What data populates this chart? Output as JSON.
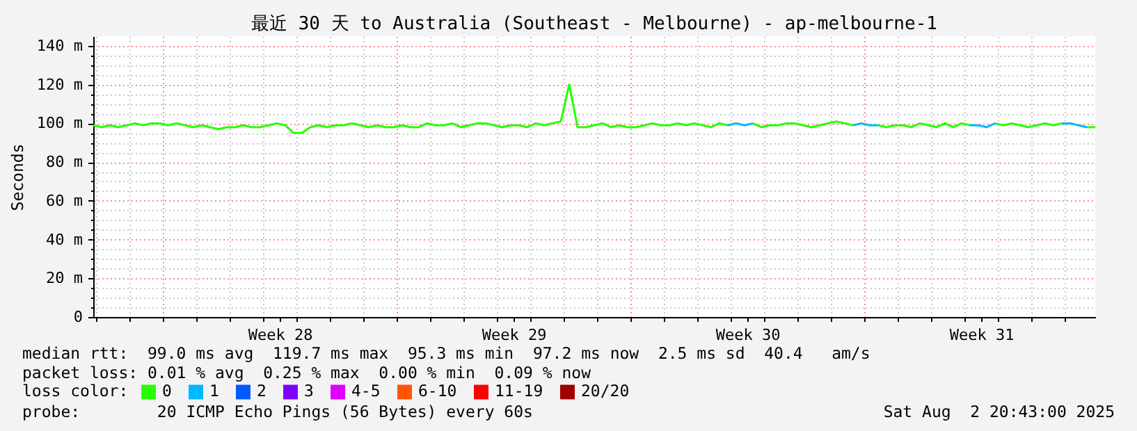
{
  "chart_data": {
    "type": "line",
    "title": "最近 30 天 to Australia (Southeast - Melbourne) - ap-melbourne-1",
    "ylabel": "Seconds",
    "legend_title": "loss color:",
    "legend": "bottom",
    "grid": true,
    "xlim": [
      "2025-07-04T22:00",
      "2025-08-03T22:00"
    ],
    "xticks": [
      {
        "value": "2025-07-05T00:00",
        "label": null
      },
      {
        "value": "2025-07-06T00:00",
        "label": null
      },
      {
        "value": "2025-07-07T00:00",
        "label": null
      },
      {
        "value": "2025-07-08T00:00",
        "label": null
      },
      {
        "value": "2025-07-09T00:00",
        "label": null
      },
      {
        "value": "2025-07-10T00:00",
        "label": null
      },
      {
        "value": "2025-07-10T12:00",
        "label": "Week 28"
      },
      {
        "value": "2025-07-11T00:00",
        "label": null
      },
      {
        "value": "2025-07-12T00:00",
        "label": null
      },
      {
        "value": "2025-07-13T00:00",
        "label": null
      },
      {
        "value": "2025-07-14T00:00",
        "label": null
      },
      {
        "value": "2025-07-15T00:00",
        "label": null
      },
      {
        "value": "2025-07-16T00:00",
        "label": null
      },
      {
        "value": "2025-07-17T00:00",
        "label": null
      },
      {
        "value": "2025-07-17T12:00",
        "label": "Week 29"
      },
      {
        "value": "2025-07-18T00:00",
        "label": null
      },
      {
        "value": "2025-07-19T00:00",
        "label": null
      },
      {
        "value": "2025-07-20T00:00",
        "label": null
      },
      {
        "value": "2025-07-21T00:00",
        "label": null
      },
      {
        "value": "2025-07-22T00:00",
        "label": null
      },
      {
        "value": "2025-07-23T00:00",
        "label": null
      },
      {
        "value": "2025-07-24T00:00",
        "label": null
      },
      {
        "value": "2025-07-24T12:00",
        "label": "Week 30"
      },
      {
        "value": "2025-07-25T00:00",
        "label": null
      },
      {
        "value": "2025-07-26T00:00",
        "label": null
      },
      {
        "value": "2025-07-27T00:00",
        "label": null
      },
      {
        "value": "2025-07-28T00:00",
        "label": null
      },
      {
        "value": "2025-07-29T00:00",
        "label": null
      },
      {
        "value": "2025-07-30T00:00",
        "label": null
      },
      {
        "value": "2025-07-31T00:00",
        "label": null
      },
      {
        "value": "2025-07-31T12:00",
        "label": "Week 31"
      },
      {
        "value": "2025-08-01T00:00",
        "label": null
      },
      {
        "value": "2025-08-02T00:00",
        "label": null
      },
      {
        "value": "2025-08-03T00:00",
        "label": null
      }
    ],
    "ylim": [
      0,
      145
    ],
    "yticks": [
      0,
      {
        "value": 5,
        "label": null
      },
      {
        "value": 10,
        "label": null
      },
      {
        "value": 15,
        "label": null
      },
      {
        "value": 20,
        "label": "20 m"
      },
      {
        "value": 25,
        "label": null
      },
      {
        "value": 30,
        "label": null
      },
      {
        "value": 35,
        "label": null
      },
      {
        "value": 40,
        "label": "40 m"
      },
      {
        "value": 45,
        "label": null
      },
      {
        "value": 50,
        "label": null
      },
      {
        "value": 55,
        "label": null
      },
      {
        "value": 60,
        "label": "60 m"
      },
      {
        "value": 65,
        "label": null
      },
      {
        "value": 70,
        "label": null
      },
      {
        "value": 75,
        "label": null
      },
      {
        "value": 80,
        "label": "80 m"
      },
      {
        "value": 85,
        "label": null
      },
      {
        "value": 90,
        "label": null
      },
      {
        "value": 95,
        "label": null
      },
      {
        "value": 100,
        "label": "100 m"
      },
      {
        "value": 105,
        "label": null
      },
      {
        "value": 110,
        "label": null
      },
      {
        "value": 115,
        "label": null
      },
      {
        "value": 120,
        "label": "120 m"
      },
      {
        "value": 125,
        "label": null
      },
      {
        "value": 130,
        "label": null
      },
      {
        "value": 135,
        "label": null
      },
      {
        "value": 140,
        "label": "140 m"
      }
    ],
    "x": [
      "2025-07-04T22:00",
      "2025-07-05T04:00",
      "2025-07-05T10:00",
      "2025-07-05T16:00",
      "2025-07-05T22:00",
      "2025-07-06T04:00",
      "2025-07-06T10:00",
      "2025-07-06T16:00",
      "2025-07-06T22:00",
      "2025-07-07T04:00",
      "2025-07-07T10:00",
      "2025-07-07T16:00",
      "2025-07-07T22:00",
      "2025-07-08T04:00",
      "2025-07-08T10:00",
      "2025-07-08T16:00",
      "2025-07-08T22:00",
      "2025-07-09T04:00",
      "2025-07-09T10:00",
      "2025-07-09T16:00",
      "2025-07-09T22:00",
      "2025-07-10T04:00",
      "2025-07-10T10:00",
      "2025-07-10T16:00",
      "2025-07-10T22:00",
      "2025-07-11T04:00",
      "2025-07-11T10:00",
      "2025-07-11T16:00",
      "2025-07-11T22:00",
      "2025-07-12T04:00",
      "2025-07-12T10:00",
      "2025-07-12T16:00",
      "2025-07-12T22:00",
      "2025-07-13T04:00",
      "2025-07-13T10:00",
      "2025-07-13T16:00",
      "2025-07-13T22:00",
      "2025-07-14T04:00",
      "2025-07-14T10:00",
      "2025-07-14T16:00",
      "2025-07-14T22:00",
      "2025-07-15T04:00",
      "2025-07-15T10:00",
      "2025-07-15T16:00",
      "2025-07-15T22:00",
      "2025-07-16T04:00",
      "2025-07-16T10:00",
      "2025-07-16T16:00",
      "2025-07-16T22:00",
      "2025-07-17T04:00",
      "2025-07-17T10:00",
      "2025-07-17T16:00",
      "2025-07-17T22:00",
      "2025-07-18T04:00",
      "2025-07-18T10:00",
      "2025-07-18T16:00",
      "2025-07-18T22:00",
      "2025-07-19T04:00",
      "2025-07-19T10:00",
      "2025-07-19T16:00",
      "2025-07-19T22:00",
      "2025-07-20T04:00",
      "2025-07-20T10:00",
      "2025-07-20T16:00",
      "2025-07-20T22:00",
      "2025-07-21T04:00",
      "2025-07-21T10:00",
      "2025-07-21T16:00",
      "2025-07-21T22:00",
      "2025-07-22T04:00",
      "2025-07-22T10:00",
      "2025-07-22T16:00",
      "2025-07-22T22:00",
      "2025-07-23T04:00",
      "2025-07-23T10:00",
      "2025-07-23T16:00",
      "2025-07-23T22:00",
      "2025-07-24T04:00",
      "2025-07-24T10:00",
      "2025-07-24T16:00",
      "2025-07-24T22:00",
      "2025-07-25T04:00",
      "2025-07-25T10:00",
      "2025-07-25T16:00",
      "2025-07-25T22:00",
      "2025-07-26T04:00",
      "2025-07-26T10:00",
      "2025-07-26T16:00",
      "2025-07-26T22:00",
      "2025-07-27T04:00",
      "2025-07-27T10:00",
      "2025-07-27T16:00",
      "2025-07-27T22:00",
      "2025-07-28T04:00",
      "2025-07-28T10:00",
      "2025-07-28T16:00",
      "2025-07-28T22:00",
      "2025-07-29T04:00",
      "2025-07-29T10:00",
      "2025-07-29T16:00",
      "2025-07-29T22:00",
      "2025-07-30T04:00",
      "2025-07-30T10:00",
      "2025-07-30T16:00",
      "2025-07-30T22:00",
      "2025-07-31T04:00",
      "2025-07-31T10:00",
      "2025-07-31T16:00",
      "2025-07-31T22:00",
      "2025-08-01T04:00",
      "2025-08-01T10:00",
      "2025-08-01T16:00",
      "2025-08-01T22:00",
      "2025-08-02T04:00",
      "2025-08-02T10:00",
      "2025-08-02T16:00",
      "2025-08-02T22:00",
      "2025-08-03T04:00",
      "2025-08-03T10:00",
      "2025-08-03T16:00",
      "2025-08-03T22:00"
    ],
    "series": [
      {
        "name": "0",
        "color": "#26ff00",
        "values": [
          99,
          98,
          99,
          98,
          99,
          100,
          99,
          100,
          100,
          99,
          100,
          99,
          98,
          99,
          98,
          97,
          98,
          98,
          99,
          98,
          98,
          99,
          100,
          99,
          95,
          95,
          98,
          99,
          98,
          99,
          99,
          100,
          99,
          98,
          99,
          98,
          98,
          99,
          98,
          98,
          100,
          99,
          99,
          100,
          98,
          99,
          100,
          100,
          99,
          98,
          99,
          99,
          98,
          100,
          99,
          100,
          101,
          120,
          98,
          98,
          99,
          100,
          98,
          99,
          98,
          98,
          99,
          100,
          99,
          99,
          100,
          99,
          100,
          99,
          98,
          100,
          99,
          null,
          null,
          100,
          98,
          99,
          99,
          100,
          100,
          99,
          98,
          99,
          100,
          101,
          100,
          99,
          null,
          null,
          99,
          98,
          99,
          99,
          98,
          100,
          99,
          98,
          100,
          98,
          100,
          99,
          null,
          null,
          100,
          99,
          100,
          99,
          98,
          99,
          100,
          99,
          100,
          null,
          null,
          98,
          98
        ]
      },
      {
        "name": "1",
        "color": "#00b8ff",
        "x": [
          "2025-07-23T22:00",
          "2025-07-24T04:00",
          "2025-07-24T10:00",
          "2025-07-24T16:00",
          "2025-07-24T22:00",
          "2025-07-27T16:00",
          "2025-07-27T22:00",
          "2025-07-28T04:00",
          "2025-07-28T10:00",
          "2025-07-28T16:00",
          "2025-07-31T04:00",
          "2025-07-31T10:00",
          "2025-07-31T16:00",
          "2025-07-31T22:00",
          "2025-08-01T04:00",
          "2025-08-02T22:00",
          "2025-08-03T04:00",
          "2025-08-03T10:00",
          "2025-08-03T16:00"
        ],
        "values": [
          99,
          100,
          99,
          100,
          null,
          99,
          100,
          99,
          99,
          null,
          99,
          99,
          98,
          100,
          null,
          100,
          100,
          99,
          98
        ]
      },
      {
        "name": "2",
        "color": "#0059ff",
        "values": [
          null,
          null,
          null,
          null,
          null,
          null,
          null,
          null,
          null,
          null,
          null,
          null,
          null,
          null,
          null,
          null,
          null,
          null,
          null,
          null,
          null,
          null,
          null,
          null,
          null,
          null,
          null,
          null,
          null,
          null,
          null,
          null,
          null,
          null,
          null,
          null,
          null,
          null,
          null,
          null,
          null,
          null,
          null,
          null,
          null,
          null,
          null,
          null,
          null,
          null,
          null,
          null,
          null,
          null,
          null,
          null,
          null,
          null,
          null,
          null,
          null,
          null,
          null,
          null,
          null,
          null,
          null,
          null,
          null,
          null,
          null,
          null,
          null,
          null,
          null,
          null,
          null,
          null,
          null,
          null,
          null,
          null,
          null,
          null,
          null,
          null,
          null,
          null,
          null,
          null,
          null,
          null,
          null,
          null,
          null,
          null,
          null,
          null,
          null,
          null,
          null,
          null,
          null,
          null,
          null,
          null,
          null,
          null,
          null,
          null,
          null,
          null,
          null,
          null,
          null,
          null,
          null,
          null,
          null,
          null,
          null
        ]
      },
      {
        "name": "3",
        "color": "#7e00ff",
        "values": [
          null,
          null,
          null,
          null,
          null,
          null,
          null,
          null,
          null,
          null,
          null,
          null,
          null,
          null,
          null,
          null,
          null,
          null,
          null,
          null,
          null,
          null,
          null,
          null,
          null,
          null,
          null,
          null,
          null,
          null,
          null,
          null,
          null,
          null,
          null,
          null,
          null,
          null,
          null,
          null,
          null,
          null,
          null,
          null,
          null,
          null,
          null,
          null,
          null,
          null,
          null,
          null,
          null,
          null,
          null,
          null,
          null,
          null,
          null,
          null,
          null,
          null,
          null,
          null,
          null,
          null,
          null,
          null,
          null,
          null,
          null,
          null,
          null,
          null,
          null,
          null,
          null,
          null,
          null,
          null,
          null,
          null,
          null,
          null,
          null,
          null,
          null,
          null,
          null,
          null,
          null,
          null,
          null,
          null,
          null,
          null,
          null,
          null,
          null,
          null,
          null,
          null,
          null,
          null,
          null,
          null,
          null,
          null,
          null,
          null,
          null,
          null,
          null,
          null,
          null,
          null,
          null,
          null,
          null,
          null,
          null
        ]
      },
      {
        "name": "4-5",
        "color": "#dd00ff",
        "values": [
          null,
          null,
          null,
          null,
          null,
          null,
          null,
          null,
          null,
          null,
          null,
          null,
          null,
          null,
          null,
          null,
          null,
          null,
          null,
          null,
          null,
          null,
          null,
          null,
          null,
          null,
          null,
          null,
          null,
          null,
          null,
          null,
          null,
          null,
          null,
          null,
          null,
          null,
          null,
          null,
          null,
          null,
          null,
          null,
          null,
          null,
          null,
          null,
          null,
          null,
          null,
          null,
          null,
          null,
          null,
          null,
          null,
          null,
          null,
          null,
          null,
          null,
          null,
          null,
          null,
          null,
          null,
          null,
          null,
          null,
          null,
          null,
          null,
          null,
          null,
          null,
          null,
          null,
          null,
          null,
          null,
          null,
          null,
          null,
          null,
          null,
          null,
          null,
          null,
          null,
          null,
          null,
          null,
          null,
          null,
          null,
          null,
          null,
          null,
          null,
          null,
          null,
          null,
          null,
          null,
          null,
          null,
          null,
          null,
          null,
          null,
          null,
          null,
          null,
          null,
          null,
          null,
          null,
          null,
          null,
          null
        ]
      },
      {
        "name": "6-10",
        "color": "#ff5500",
        "values": [
          null,
          null,
          null,
          null,
          null,
          null,
          null,
          null,
          null,
          null,
          null,
          null,
          null,
          null,
          null,
          null,
          null,
          null,
          null,
          null,
          null,
          null,
          null,
          null,
          null,
          null,
          null,
          null,
          null,
          null,
          null,
          null,
          null,
          null,
          null,
          null,
          null,
          null,
          null,
          null,
          null,
          null,
          null,
          null,
          null,
          null,
          null,
          null,
          null,
          null,
          null,
          null,
          null,
          null,
          null,
          null,
          null,
          null,
          null,
          null,
          null,
          null,
          null,
          null,
          null,
          null,
          null,
          null,
          null,
          null,
          null,
          null,
          null,
          null,
          null,
          null,
          null,
          null,
          null,
          null,
          null,
          null,
          null,
          null,
          null,
          null,
          null,
          null,
          null,
          null,
          null,
          null,
          null,
          null,
          null,
          null,
          null,
          null,
          null,
          null,
          null,
          null,
          null,
          null,
          null,
          null,
          null,
          null,
          null,
          null,
          null,
          null,
          null,
          null,
          null,
          null,
          null,
          null,
          null,
          null,
          null
        ]
      },
      {
        "name": "11-19",
        "color": "#ff0000",
        "values": [
          null,
          null,
          null,
          null,
          null,
          null,
          null,
          null,
          null,
          null,
          null,
          null,
          null,
          null,
          null,
          null,
          null,
          null,
          null,
          null,
          null,
          null,
          null,
          null,
          null,
          null,
          null,
          null,
          null,
          null,
          null,
          null,
          null,
          null,
          null,
          null,
          null,
          null,
          null,
          null,
          null,
          null,
          null,
          null,
          null,
          null,
          null,
          null,
          null,
          null,
          null,
          null,
          null,
          null,
          null,
          null,
          null,
          null,
          null,
          null,
          null,
          null,
          null,
          null,
          null,
          null,
          null,
          null,
          null,
          null,
          null,
          null,
          null,
          null,
          null,
          null,
          null,
          null,
          null,
          null,
          null,
          null,
          null,
          null,
          null,
          null,
          null,
          null,
          null,
          null,
          null,
          null,
          null,
          null,
          null,
          null,
          null,
          null,
          null,
          null,
          null,
          null,
          null,
          null,
          null,
          null,
          null,
          null,
          null,
          null,
          null,
          null,
          null,
          null,
          null,
          null,
          null,
          null,
          null,
          null,
          null
        ]
      },
      {
        "name": "20/20",
        "color": "#a10000",
        "values": [
          null,
          null,
          null,
          null,
          null,
          null,
          null,
          null,
          null,
          null,
          null,
          null,
          null,
          null,
          null,
          null,
          null,
          null,
          null,
          null,
          null,
          null,
          null,
          null,
          null,
          null,
          null,
          null,
          null,
          null,
          null,
          null,
          null,
          null,
          null,
          null,
          null,
          null,
          null,
          null,
          null,
          null,
          null,
          null,
          null,
          null,
          null,
          null,
          null,
          null,
          null,
          null,
          null,
          null,
          null,
          null,
          null,
          null,
          null,
          null,
          null,
          null,
          null,
          null,
          null,
          null,
          null,
          null,
          null,
          null,
          null,
          null,
          null,
          null,
          null,
          null,
          null,
          null,
          null,
          null,
          null,
          null,
          null,
          null,
          null,
          null,
          null,
          null,
          null,
          null,
          null,
          null,
          null,
          null,
          null,
          null,
          null,
          null,
          null,
          null,
          null,
          null,
          null,
          null,
          null,
          null,
          null,
          null,
          null,
          null,
          null,
          null,
          null,
          null,
          null,
          null,
          null,
          null,
          null,
          null,
          null
        ]
      }
    ],
    "annotations": [
      "median rtt:  99.0 ms avg  119.7 ms max  95.3 ms min  97.2 ms now  2.5 ms sd  40.4   am/s",
      "packet loss: 0.01 % avg  0.25 % max  0.00 % min  0.09 % now",
      "probe:        20 ICMP Echo Pings (56 Bytes) every 60s",
      "Sat Aug  2 20:43:00 2025"
    ]
  }
}
